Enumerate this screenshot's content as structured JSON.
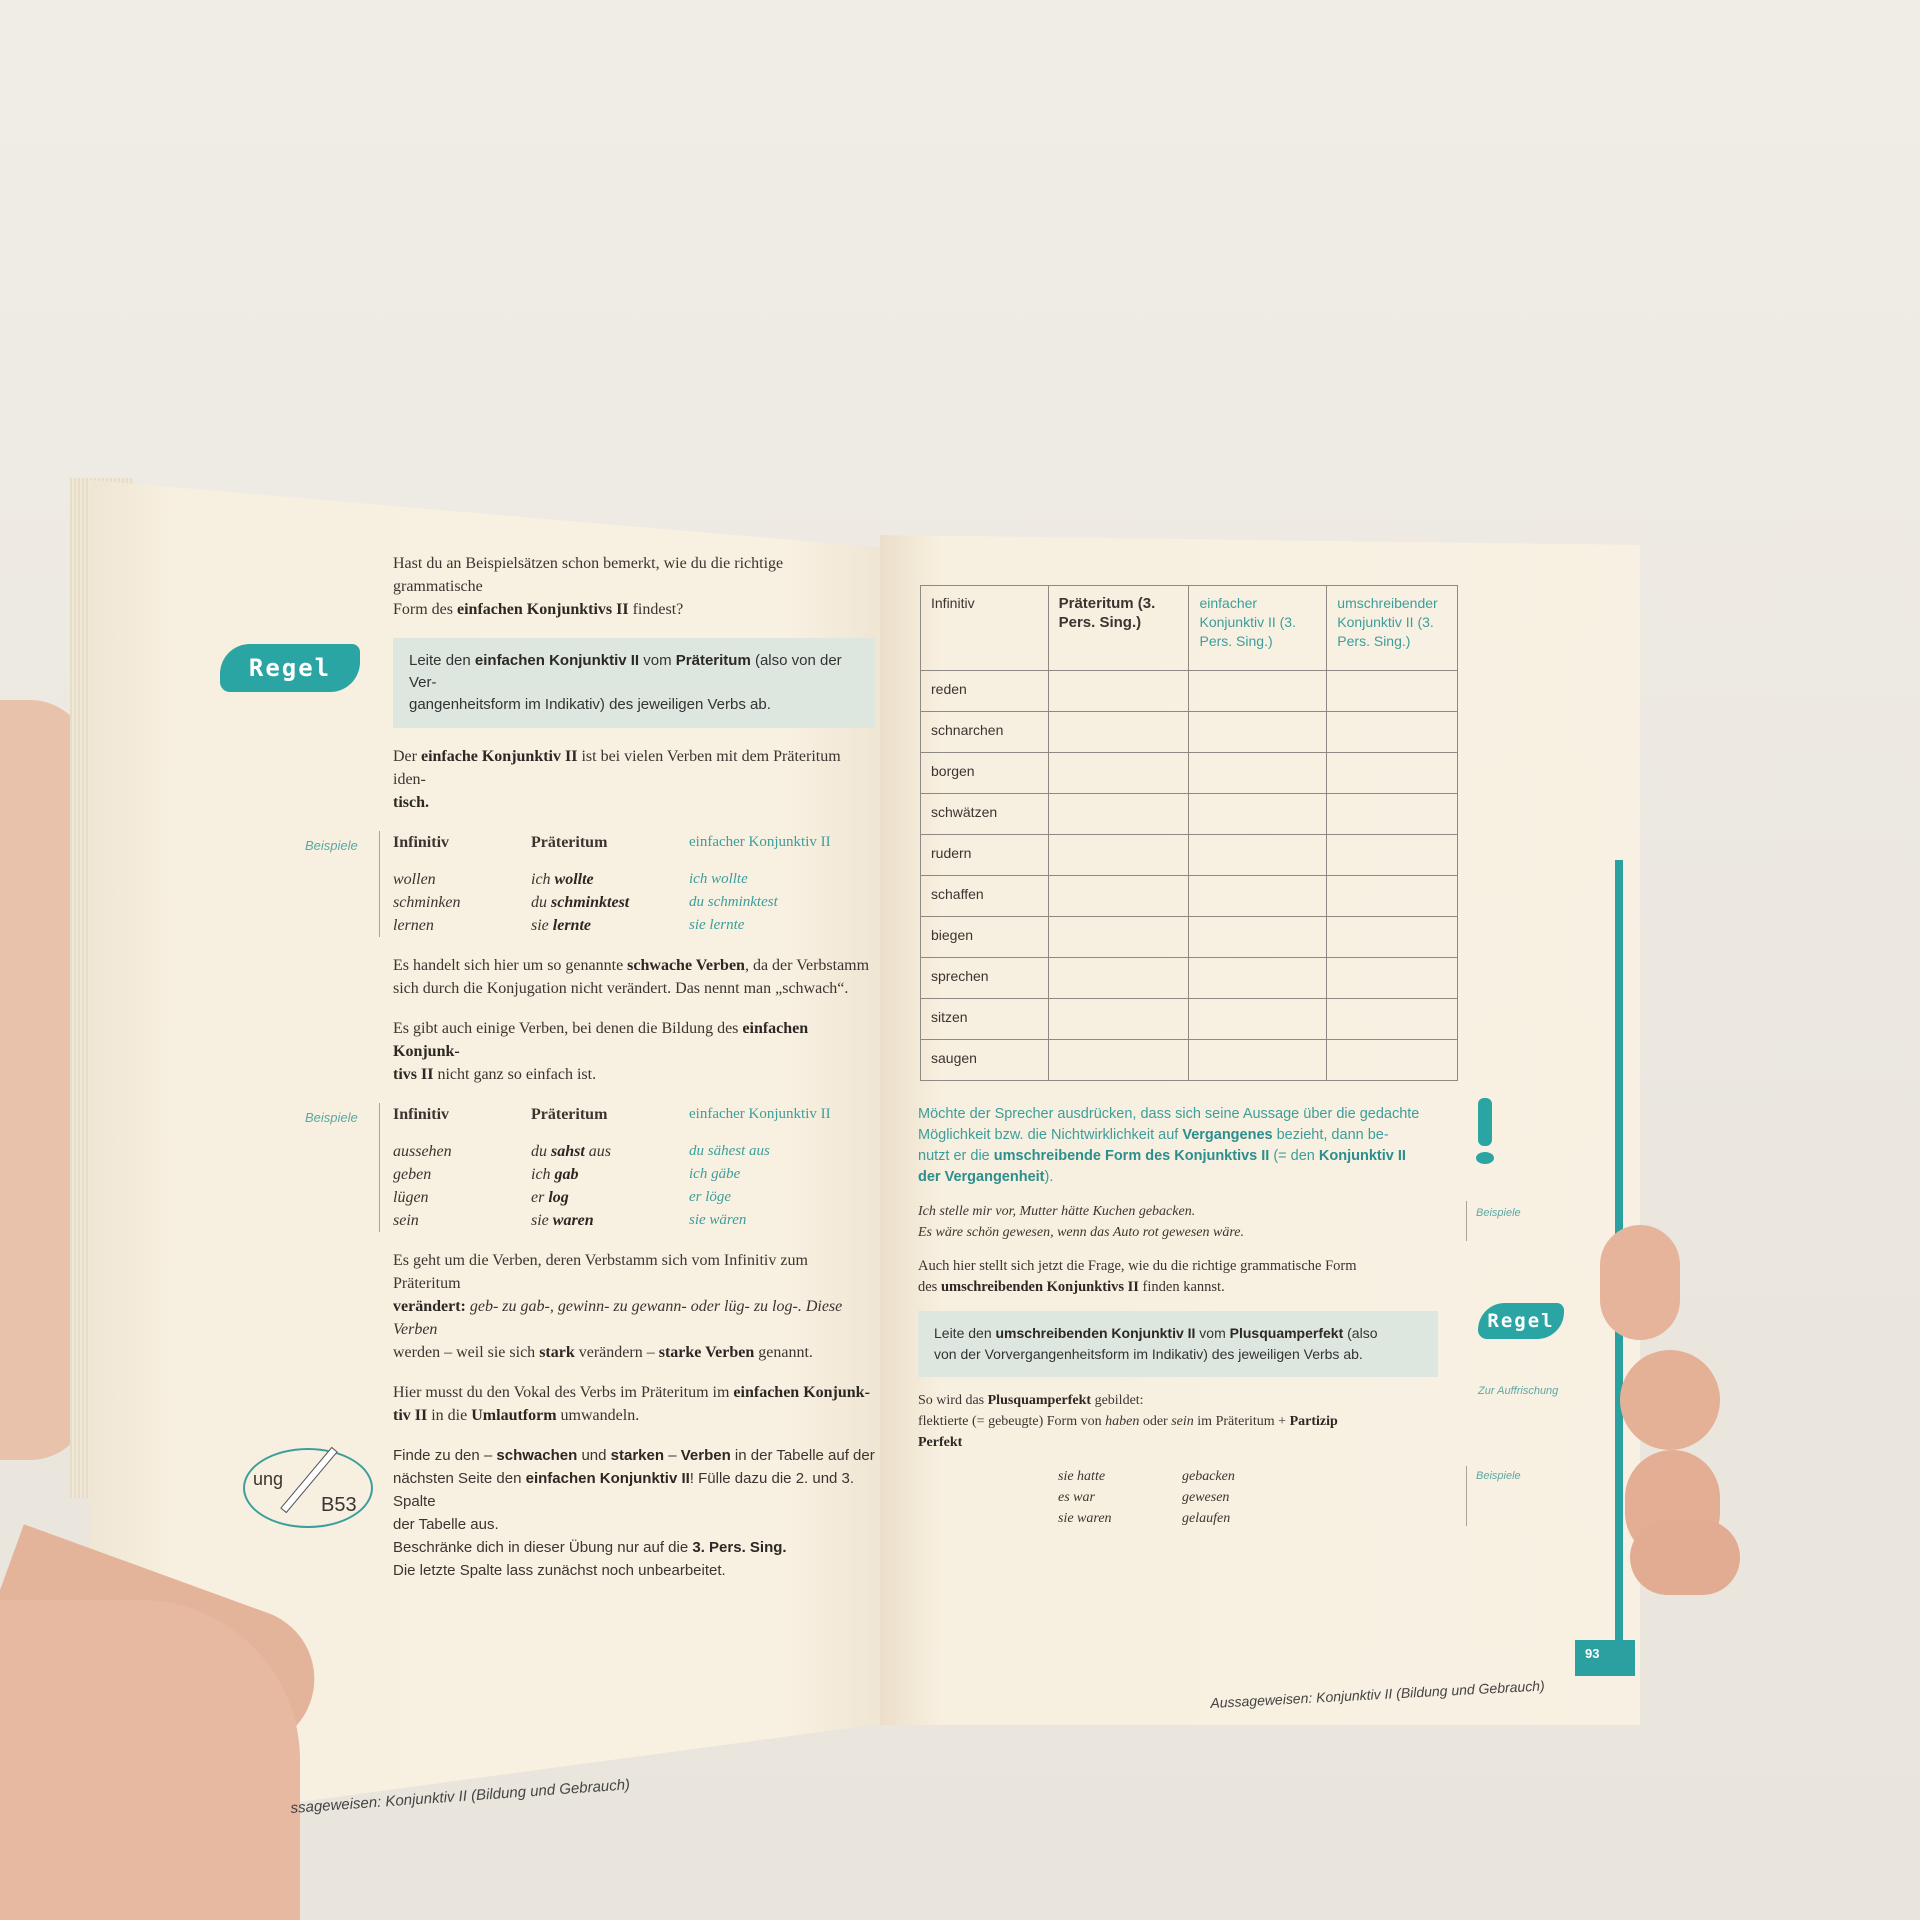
{
  "colors": {
    "accent": "#2aa5a3",
    "rule_box": "#dde7df",
    "paper": "#f8f0e1",
    "background": "#eeebe4"
  },
  "left_page": {
    "intro": [
      "Hast du an Beispielsätzen schon bemerkt, wie du die richtige grammatische",
      "Form des ",
      "einfachen Konjunktivs II",
      " findest?"
    ],
    "regel_badge": "Regel",
    "rule": [
      "Leite den ",
      "einfachen Konjunktiv II",
      " vom ",
      "Präteritum",
      " (also von der Ver-",
      "gangenheitsform im Indikativ) des jeweiligen Verbs ab."
    ],
    "identical": [
      "Der ",
      "einfache Konjunktiv II",
      " ist bei vielen Verben mit dem Präteritum iden-",
      "tisch."
    ],
    "examples1": {
      "label": "Beispiele",
      "headers": [
        "Infinitiv",
        "Präteritum",
        "einfacher Konjunktiv II"
      ],
      "rows": [
        [
          "wollen",
          "ich ",
          "wollte",
          "ich wollte"
        ],
        [
          "schminken",
          "du ",
          "schminktest",
          "du schminktest"
        ],
        [
          "lernen",
          "sie ",
          "lernte",
          "sie lernte"
        ]
      ]
    },
    "weak": [
      "Es handelt sich hier um so genannte ",
      "schwache Verben",
      ", da der Verbstamm",
      "sich durch die Konjugation nicht verändert. Das nennt man „schwach“."
    ],
    "some": [
      "Es gibt auch einige Verben, bei denen die Bildung des ",
      "einfachen Konjunk-",
      "tivs II",
      " nicht ganz so einfach ist."
    ],
    "examples2": {
      "label": "Beispiele",
      "headers": [
        "Infinitiv",
        "Präteritum",
        "einfacher Konjunktiv II"
      ],
      "rows": [
        [
          "aussehen",
          "du ",
          "sahst",
          " aus",
          "du sähest aus"
        ],
        [
          "geben",
          "ich ",
          "gab",
          "",
          "ich gäbe"
        ],
        [
          "lügen",
          "er ",
          "log",
          "",
          "er löge"
        ],
        [
          "sein",
          "sie ",
          "waren",
          "",
          "sie wären"
        ]
      ]
    },
    "strong": [
      "Es geht um die Verben, deren Verbstamm sich vom Infinitiv zum Präteritum",
      "verändert:",
      " geb- zu gab-, gewinn- zu gewann- oder lüg- zu log-. Diese Verben",
      "werden – weil sie sich ",
      "stark",
      " verändern – ",
      "starke Verben",
      " genannt."
    ],
    "umlaut": [
      "Hier musst du den Vokal des Verbs im Präteritum im ",
      "einfachen Konjunk-",
      "tiv II",
      " in die ",
      "Umlautform",
      " umwandeln."
    ],
    "exercise_badge": {
      "text": "ung",
      "code": "B53"
    },
    "task": [
      "Finde zu den – ",
      "schwachen",
      " und ",
      "starken",
      " – ",
      "Verben",
      " in der Tabelle auf der",
      "nächsten Seite den ",
      "einfachen Konjunktiv II",
      "! Fülle dazu die 2. und 3. Spalte",
      "der Tabelle aus.",
      "Beschränke dich in dieser Übung nur auf die ",
      "3. Pers. Sing.",
      "Die letzte Spalte lass zunächst noch unbearbeitet."
    ],
    "footer": "ssageweisen: Konjunktiv II (Bildung und Gebrauch)"
  },
  "right_page": {
    "table": {
      "headers": [
        "Infinitiv",
        "Präteritum (3. Pers. Sing.)",
        "einfacher Konjunktiv II (3. Pers. Sing.)",
        "umschreibender Konjunktiv II (3. Pers. Sing.)"
      ],
      "rows": [
        "reden",
        "schnarchen",
        "borgen",
        "schwätzen",
        "rudern",
        "schaffen",
        "biegen",
        "sprechen",
        "sitzen",
        "saugen"
      ]
    },
    "note_icon": "exclamation-icon",
    "note": [
      "Möchte der Sprecher ausdrücken, dass sich seine Aussage über die gedachte",
      "Möglichkeit bzw. die Nichtwirklichkeit auf ",
      "Vergangenes",
      " bezieht, dann be-",
      "nutzt er die ",
      "umschreibende Form des Konjunktivs II",
      " (= den ",
      "Konjunktiv II",
      "der Vergangenheit",
      ")."
    ],
    "examples_label": "Beispiele",
    "examples": [
      "Ich stelle mir vor, Mutter hätte Kuchen gebacken.",
      "Es wäre schön gewesen, wenn das Auto rot gewesen wäre."
    ],
    "question": [
      "Auch hier stellt sich jetzt die Frage, wie du die richtige grammatische Form",
      "des ",
      "umschreibenden Konjunktivs II",
      " finden kannst."
    ],
    "regel_badge": "Regel",
    "rule": [
      "Leite den ",
      "umschreibenden Konjunktiv II",
      " vom ",
      "Plusquamperfekt",
      " (also",
      "von der Vorvergangenheitsform im Indikativ) des jeweiligen Verbs ab."
    ],
    "refresh_label": "Zur Auffrischung",
    "formation": [
      "So wird das ",
      "Plusquamperfekt",
      " gebildet:",
      "flektierte (= gebeugte) Form von ",
      "haben",
      " oder ",
      "sein",
      " im Präteritum + ",
      "Partizip",
      "Perfekt"
    ],
    "examples2_label": "Beispiele",
    "examples2": [
      [
        "sie hatte",
        "gebacken"
      ],
      [
        "es war",
        "gewesen"
      ],
      [
        "sie waren",
        "gelaufen"
      ]
    ],
    "footer": "Aussageweisen: Konjunktiv II (Bildung und Gebrauch)",
    "page_number": "93"
  }
}
